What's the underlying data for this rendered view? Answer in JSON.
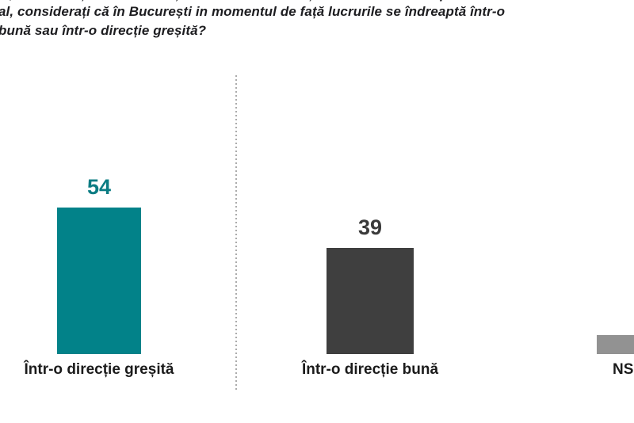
{
  "page": {
    "background": "#ffffff"
  },
  "title": {
    "line1": "al, considerați că în București in momentul de față lucrurile se îndreaptă într-o",
    "line2": "bună sau într-o direcție greșită?",
    "color": "#1d1d20"
  },
  "divider": {
    "style": "vertical-dotted-line",
    "color": "#ababab"
  },
  "chart_data": {
    "type": "bar",
    "title": "al, considerați că în București in momentul de față lucrurile se îndreaptă într-o bună sau într-o direcție greșită?",
    "categories": [
      "Într-o direcție greșită",
      "Într-o direcție bună",
      "NS"
    ],
    "values": [
      54,
      39,
      7
    ],
    "value_labels": [
      "54",
      "39",
      ""
    ],
    "bar_colors": [
      "#028289",
      "#3f3f3f",
      "#929292"
    ],
    "value_label_colors": [
      "#0b7c83",
      "#3a3a3a",
      "#3a3a3a"
    ],
    "category_label_color": "#1b1b1b",
    "ylim": [
      0,
      60
    ],
    "grid": false,
    "legend": false,
    "axis_lines": false
  }
}
